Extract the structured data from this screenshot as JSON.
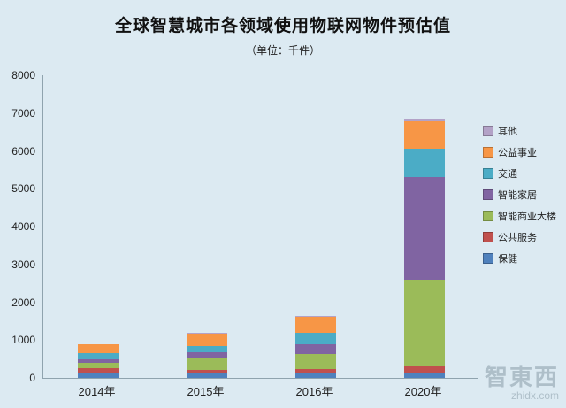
{
  "title": "全球智慧城市各领域使用物联网物件预估值",
  "subtitle": "（单位：千件）",
  "watermark": {
    "logo": "智東西",
    "url_text": "zhidx.com"
  },
  "chart_data": {
    "type": "bar",
    "stacked": true,
    "title": "全球智慧城市各领域使用物联网物件预估值",
    "subtitle": "（单位：千件）",
    "unit": "千件",
    "categories": [
      "2014年",
      "2015年",
      "2016年",
      "2020年"
    ],
    "series": [
      {
        "name": "保健",
        "color": "#4f81bd",
        "values": [
          150,
          120,
          120,
          120
        ]
      },
      {
        "name": "公共服务",
        "color": "#c0504d",
        "values": [
          100,
          100,
          120,
          200
        ]
      },
      {
        "name": "智能商业大楼",
        "color": "#9bbb59",
        "values": [
          150,
          300,
          400,
          2280
        ]
      },
      {
        "name": "智能家居",
        "color": "#8064a2",
        "values": [
          100,
          150,
          250,
          2700
        ]
      },
      {
        "name": "交通",
        "color": "#4bacc6",
        "values": [
          150,
          180,
          300,
          750
        ]
      },
      {
        "name": "公益事业",
        "color": "#f79646",
        "values": [
          230,
          320,
          430,
          730
        ]
      },
      {
        "name": "其他",
        "color": "#b3a2c7",
        "values": [
          20,
          30,
          30,
          70
        ]
      }
    ],
    "legend_order_top_to_bottom": [
      "其他",
      "公益事业",
      "交通",
      "智能家居",
      "智能商业大楼",
      "公共服务",
      "保健"
    ],
    "totals": [
      900,
      1200,
      1650,
      6850
    ],
    "ylim": [
      0,
      8000
    ],
    "y_ticks": [
      0,
      1000,
      2000,
      3000,
      4000,
      5000,
      6000,
      7000,
      8000
    ],
    "grid": false,
    "legend_position": "right",
    "background_color": "#dceaf2"
  }
}
